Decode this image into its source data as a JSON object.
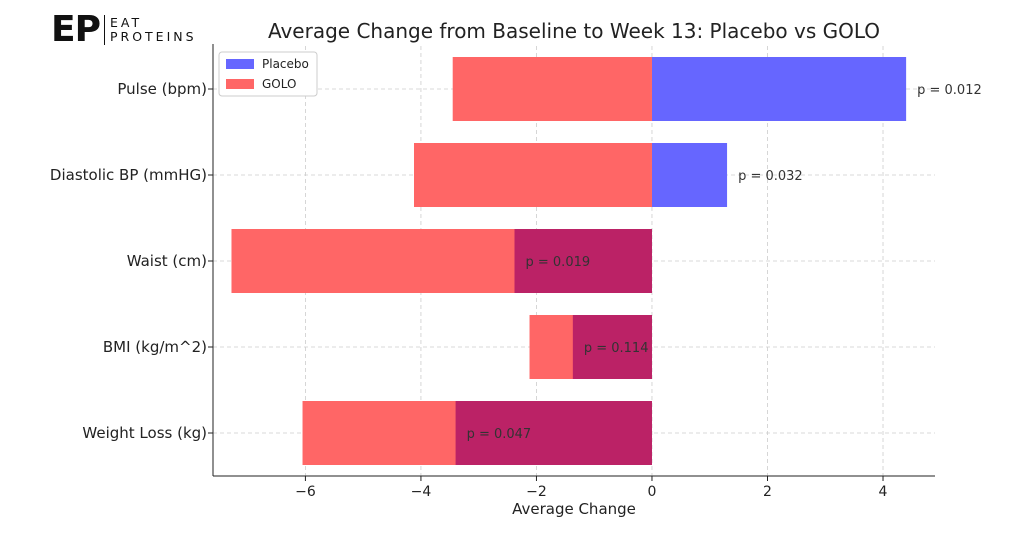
{
  "logo": {
    "mark": "EP",
    "line1": "EAT",
    "line2": "PROTEINS"
  },
  "chart_data": {
    "type": "bar",
    "orientation": "horizontal",
    "title": "Average Change from Baseline to Week 13: Placebo vs GOLO",
    "xlabel": "Average Change",
    "ylabel": "",
    "xlim": [
      -7.6,
      4.9
    ],
    "xticks": [
      -6,
      -4,
      -2,
      0,
      2,
      4
    ],
    "xtick_labels": [
      "−6",
      "−4",
      "−2",
      "0",
      "2",
      "4"
    ],
    "grid": true,
    "legend_position": "top-left",
    "categories": [
      "Pulse (bpm)",
      "Diastolic BP (mmHG)",
      "Waist (cm)",
      "BMI (kg/m^2)",
      "Weight Loss (kg)"
    ],
    "series": [
      {
        "name": "Placebo",
        "color": "#6666ff",
        "values": [
          4.4,
          1.3,
          -2.38,
          -1.37,
          -3.4
        ]
      },
      {
        "name": "GOLO",
        "color": "#ff6666",
        "values": [
          -3.45,
          -4.12,
          -7.28,
          -2.12,
          -6.05
        ]
      }
    ],
    "overlap_color": "#bb2266",
    "annotations": [
      "p = 0.012",
      "p = 0.032",
      "p = 0.019",
      "p = 0.114",
      "p = 0.047"
    ]
  }
}
